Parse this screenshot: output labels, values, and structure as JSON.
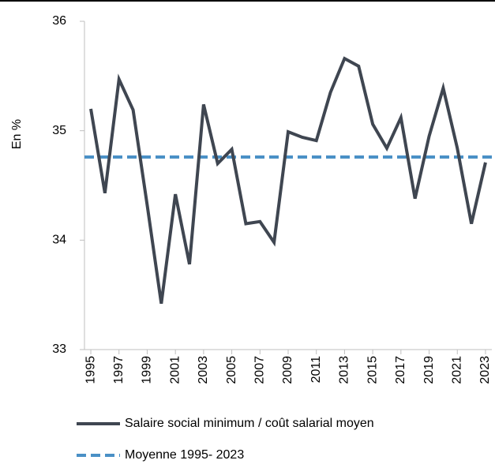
{
  "chart_data": {
    "type": "line",
    "ylabel": "En %",
    "x": [
      1995,
      1996,
      1997,
      1998,
      1999,
      2000,
      2001,
      2002,
      2003,
      2004,
      2005,
      2006,
      2007,
      2008,
      2009,
      2010,
      2011,
      2012,
      2013,
      2014,
      2015,
      2016,
      2017,
      2018,
      2019,
      2020,
      2021,
      2022,
      2023
    ],
    "series": [
      {
        "name": "Salaire social minimum / coût salarial moyen",
        "color": "#3f4651",
        "values": [
          35.2,
          34.43,
          35.47,
          35.19,
          34.32,
          33.42,
          34.42,
          33.78,
          35.24,
          34.7,
          34.83,
          34.15,
          34.17,
          33.98,
          34.99,
          34.94,
          34.91,
          35.35,
          35.66,
          35.59,
          35.06,
          34.84,
          35.12,
          34.38,
          34.95,
          35.39,
          34.84,
          34.15,
          34.71
        ]
      }
    ],
    "reference_lines": [
      {
        "name": "Moyenne 1995- 2023",
        "value": 34.76,
        "color": "#4a90c6"
      }
    ],
    "xlim": [
      1994.55,
      2023.45
    ],
    "xticks": [
      1995,
      1997,
      1999,
      2001,
      2003,
      2005,
      2007,
      2009,
      2011,
      2013,
      2015,
      2017,
      2019,
      2021,
      2023
    ],
    "ylim": [
      33,
      36
    ],
    "yticks": [
      33,
      34,
      35,
      36
    ]
  }
}
